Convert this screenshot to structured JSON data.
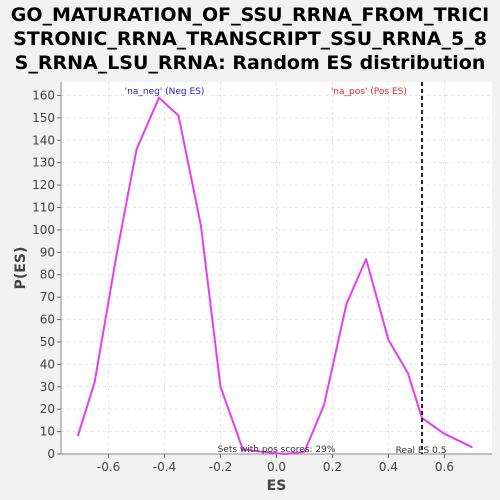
{
  "chart_data": {
    "type": "line",
    "title_lines": [
      "GO_MATURATION_OF_SSU_RRNA_FROM_TRICI",
      "STRONIC_RRNA_TRANSCRIPT_SSU_RRNA_5_8",
      "S_RRNA_LSU_RRNA: Random ES distribution"
    ],
    "xlabel": "ES",
    "ylabel": "P(ES)",
    "xlim": [
      -0.77,
      0.77
    ],
    "ylim": [
      0,
      166
    ],
    "x_ticks": [
      -0.6,
      -0.4,
      -0.2,
      0.0,
      0.2,
      0.4,
      0.6
    ],
    "x_tick_labels": [
      "-0.6",
      "-0.4",
      "-0.2",
      "0.0",
      "0.2",
      "0.4",
      "0.6"
    ],
    "y_ticks": [
      0,
      10,
      20,
      30,
      40,
      50,
      60,
      70,
      80,
      90,
      100,
      110,
      120,
      130,
      140,
      150,
      160
    ],
    "grid": true,
    "series": [
      {
        "color": "#e83cf0",
        "x": [
          -0.71,
          -0.65,
          -0.57,
          -0.5,
          -0.42,
          -0.35,
          -0.27,
          -0.2,
          -0.12,
          -0.05,
          0.03,
          0.1,
          0.17,
          0.25,
          0.32,
          0.4,
          0.47,
          0.52,
          0.6,
          0.7
        ],
        "y": [
          8,
          32,
          90,
          136,
          159,
          151,
          102,
          30,
          2,
          1,
          0,
          1,
          22,
          67,
          87,
          51,
          36,
          16,
          9,
          3
        ]
      }
    ],
    "annotations": {
      "neg_label": "'na_neg' (Neg ES)",
      "pos_label": "'na_pos' (Pos ES)",
      "sets_text": "Sets with pos scores: 29%",
      "real_es_text": "Real ES 0.5",
      "real_es_value": 0.52
    },
    "colors": {
      "neg_label": "#2222cc",
      "pos_label": "#dd2222",
      "plot_bg": "#ffffff",
      "page_bg": "#f2f2f2",
      "grid": "#e3e3e3"
    }
  }
}
